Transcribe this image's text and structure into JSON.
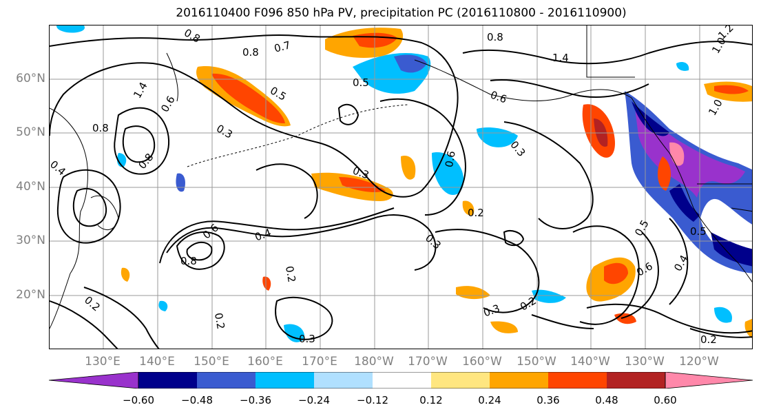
{
  "title": "2016110400 F096 850 hPa PV, precipitation PC (2016110800 - 2016110900)",
  "lat_labels": [
    "60°N",
    "50°N",
    "40°N",
    "30°N",
    "20°N"
  ],
  "lon_labels": [
    "130°E",
    "140°E",
    "150°E",
    "160°E",
    "170°E",
    "180°W",
    "170°W",
    "160°W",
    "150°W",
    "140°W",
    "130°W",
    "120°W"
  ],
  "colorbar": {
    "ticks": [
      "−0.60",
      "−0.48",
      "−0.36",
      "−0.24",
      "−0.12",
      "0.12",
      "0.24",
      "0.36",
      "0.48",
      "0.60"
    ],
    "colors": [
      "#9932CC",
      "#00008B",
      "#3A5BD0",
      "#00BFFF",
      "#B0E0FF",
      "#FFFFFF",
      "#FFE680",
      "#FFA500",
      "#FF4500",
      "#B22222",
      "#FF88AA"
    ]
  },
  "contour_labels": [
    "0.8",
    "0.8",
    "0.7",
    "0.8",
    "0.5",
    "0.5",
    "1.4",
    "0.6",
    "1.4",
    "0.6",
    "0.8",
    "0.3",
    "0.4",
    "0.8",
    "0.3",
    "0.3",
    "0.2",
    "0.6",
    "0.4",
    "0.6",
    "0.8",
    "0.2",
    "0.3",
    "0.2",
    "0.3",
    "0.3",
    "0.2",
    "0.2",
    "0.5",
    "0.6",
    "0.4",
    "0.5",
    "0.2",
    "1.0",
    "1.0",
    "1.2"
  ]
}
